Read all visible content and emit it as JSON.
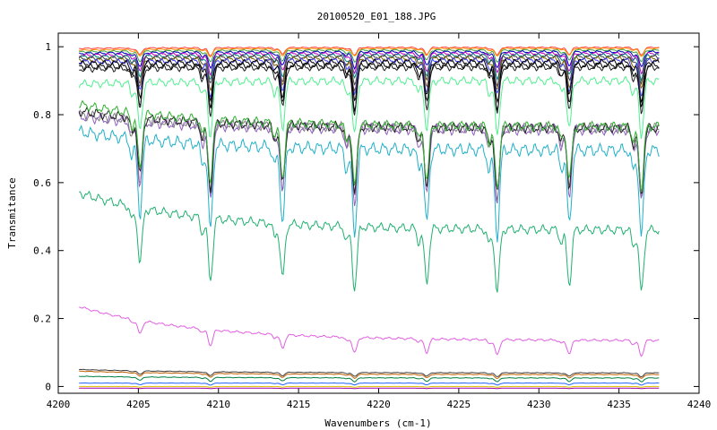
{
  "chart_data": {
    "type": "line",
    "title": "20100520_E01_188.JPG",
    "xlabel": "Wavenumbers (cm-1)",
    "ylabel": "Transmitance",
    "xlim": [
      4200,
      4240
    ],
    "ylim": [
      -0.02,
      1.04
    ],
    "x_ticks": [
      4200,
      4205,
      4210,
      4215,
      4220,
      4225,
      4230,
      4235,
      4240
    ],
    "y_ticks": [
      0,
      0.2,
      0.4,
      0.6,
      0.8,
      1
    ],
    "x_tick_labels": [
      "4200",
      "4205",
      "4210",
      "4215",
      "4220",
      "4225",
      "4230",
      "4235",
      "4240"
    ],
    "y_tick_labels": [
      "0",
      "0.2",
      "0.4",
      "0.6",
      "0.8",
      "1"
    ],
    "grid": false,
    "legend": "none",
    "absorption_lines_cm1": [
      4205.1,
      4209.5,
      4214.0,
      4218.5,
      4223.0,
      4227.4,
      4231.9,
      4236.4
    ],
    "series": [
      {
        "color": "#ff4040",
        "x": [
          4201.3,
          4237.5
        ],
        "y": [
          0.995,
          0.998
        ],
        "depth": 0.02
      },
      {
        "color": "#ff8c00",
        "x": [
          4201.3,
          4237.5
        ],
        "y": [
          0.99,
          0.995
        ],
        "depth": 0.02
      },
      {
        "color": "#40a040",
        "x": [
          4201.3,
          4237.5
        ],
        "y": [
          0.985,
          0.99
        ],
        "depth": 0.03
      },
      {
        "color": "#0000c0",
        "x": [
          4201.3,
          4237.5
        ],
        "y": [
          0.98,
          0.985
        ],
        "depth": 0.04
      },
      {
        "color": "#c000c0",
        "x": [
          4201.3,
          4237.5
        ],
        "y": [
          0.975,
          0.98
        ],
        "depth": 0.05
      },
      {
        "color": "#008080",
        "x": [
          4201.3,
          4237.5
        ],
        "y": [
          0.97,
          0.975
        ],
        "depth": 0.06
      },
      {
        "color": "#404040",
        "x": [
          4201.3,
          4237.5
        ],
        "y": [
          0.965,
          0.97
        ],
        "depth": 0.07
      },
      {
        "color": "#806000",
        "x": [
          4201.3,
          4237.5
        ],
        "y": [
          0.96,
          0.965
        ],
        "depth": 0.08
      },
      {
        "color": "#4040ff",
        "x": [
          4201.3,
          4237.5
        ],
        "y": [
          0.955,
          0.96
        ],
        "depth": 0.09
      },
      {
        "color": "#000000",
        "x": [
          4201.3,
          4237.5
        ],
        "y": [
          0.95,
          0.955
        ],
        "depth": 0.1
      },
      {
        "color": "#000000",
        "x": [
          4201.3,
          4237.5
        ],
        "y": [
          0.94,
          0.945
        ],
        "depth": 0.11
      },
      {
        "color": "#202020",
        "x": [
          4201.3,
          4237.5
        ],
        "y": [
          0.935,
          0.94
        ],
        "depth": 0.12
      },
      {
        "color": "#50f090",
        "x": [
          4201.3,
          4237.5
        ],
        "y": [
          0.89,
          0.9
        ],
        "depth": 0.14
      },
      {
        "color": "#808080",
        "x": [
          4201.3,
          4237.5
        ],
        "y": [
          0.8,
          0.76
        ],
        "depth": 0.18
      },
      {
        "color": "#9060c0",
        "x": [
          4201.3,
          4237.5
        ],
        "y": [
          0.795,
          0.755
        ],
        "depth": 0.19
      },
      {
        "color": "#202020",
        "x": [
          4201.3,
          4237.5
        ],
        "y": [
          0.81,
          0.76
        ],
        "depth": 0.17
      },
      {
        "color": "#30b030",
        "x": [
          4201.3,
          4237.5
        ],
        "y": [
          0.83,
          0.765
        ],
        "depth": 0.16
      },
      {
        "color": "#20b0c8",
        "x": [
          4201.3,
          4237.5
        ],
        "y": [
          0.75,
          0.695
        ],
        "depth": 0.22
      },
      {
        "color": "#20b070",
        "x": [
          4201.3,
          4237.5
        ],
        "y": [
          0.57,
          0.46
        ],
        "depth": 0.16
      },
      {
        "color": "#e060e0",
        "x": [
          4201.3,
          4237.5
        ],
        "y": [
          0.235,
          0.135
        ],
        "depth": 0.04
      },
      {
        "color": "#404040",
        "x": [
          4201.3,
          4237.5
        ],
        "y": [
          0.05,
          0.04
        ],
        "depth": 0.01
      },
      {
        "color": "#c06000",
        "x": [
          4201.3,
          4237.5
        ],
        "y": [
          0.045,
          0.035
        ],
        "depth": 0.01
      },
      {
        "color": "#008040",
        "x": [
          4201.3,
          4237.5
        ],
        "y": [
          0.03,
          0.025
        ],
        "depth": 0.01
      },
      {
        "color": "#2060ff",
        "x": [
          4201.3,
          4237.5
        ],
        "y": [
          0.01,
          0.01
        ],
        "depth": 0.005
      },
      {
        "color": "#e0c000",
        "x": [
          4201.3,
          4237.5
        ],
        "y": [
          0.0,
          0.0
        ],
        "depth": 0.002
      },
      {
        "color": "#a000a0",
        "x": [
          4201.3,
          4237.5
        ],
        "y": [
          -0.005,
          -0.005
        ],
        "depth": 0.001
      }
    ]
  }
}
